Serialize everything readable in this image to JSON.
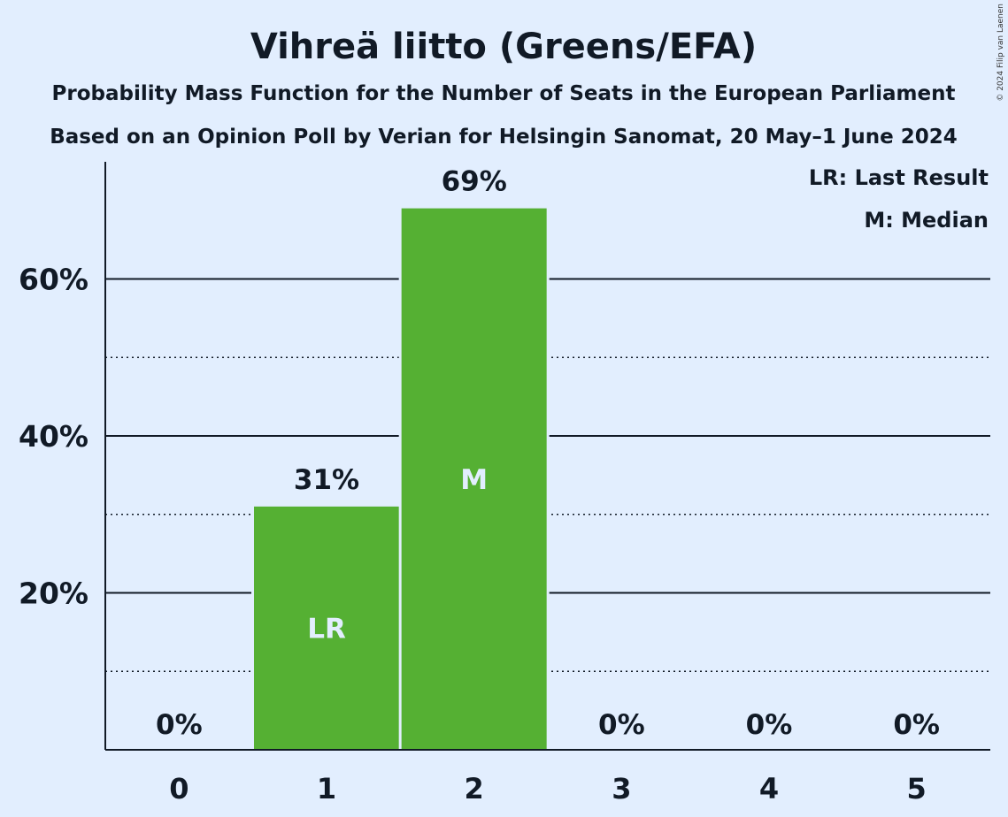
{
  "title": "Vihreä liitto (Greens/EFA)",
  "subtitle1": "Probability Mass Function for the Number of Seats in the European Parliament",
  "subtitle2": "Based on an Opinion Poll by Verian for Helsingin Sanomat, 20 May–1 June 2024",
  "copyright": "© 2024 Filip van Laenen",
  "legend": {
    "last_result": "LR: Last Result",
    "median": "M: Median"
  },
  "colors": {
    "background": "#e2eefe",
    "bar": "#55b033",
    "text": "#111a26",
    "marker_text": "#e2eefe"
  },
  "chart_data": {
    "type": "bar",
    "categories": [
      "0",
      "1",
      "2",
      "3",
      "4",
      "5"
    ],
    "values": [
      0,
      31,
      69,
      0,
      0,
      0
    ],
    "value_labels": [
      "0%",
      "31%",
      "69%",
      "0%",
      "0%",
      "0%"
    ],
    "markers": [
      "",
      "LR",
      "M",
      "",
      "",
      ""
    ],
    "title": "Vihreä liitto (Greens/EFA)",
    "xlabel": "",
    "ylabel": "",
    "ylim": [
      0,
      75
    ],
    "yticks": [
      20,
      40,
      60
    ],
    "ytick_labels": [
      "20%",
      "40%",
      "60%"
    ],
    "minor_gridlines": [
      10,
      30,
      50
    ],
    "grid": true,
    "legend_position": "top-right"
  }
}
